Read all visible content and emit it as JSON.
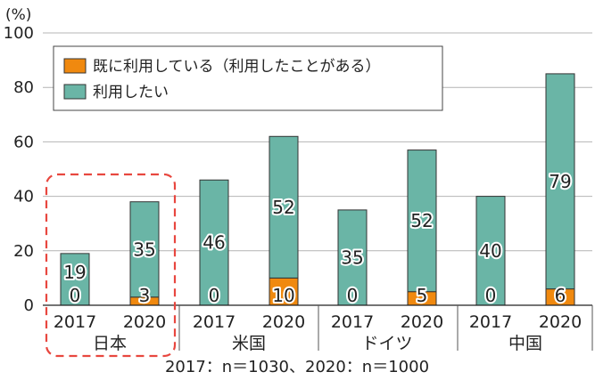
{
  "chart_data": {
    "type": "bar",
    "stacked": true,
    "unit_label": "(%)",
    "ylim": [
      0,
      100
    ],
    "yticks": [
      0,
      20,
      40,
      60,
      80,
      100
    ],
    "grid": true,
    "legend_position": "top-left",
    "groups": [
      "日本",
      "米国",
      "ドイツ",
      "中国"
    ],
    "years": [
      "2017",
      "2020"
    ],
    "categories": [
      "2017",
      "2020",
      "2017",
      "2020",
      "2017",
      "2020",
      "2017",
      "2020"
    ],
    "series": [
      {
        "name": "既に利用している（利用したことがある）",
        "color": "#f0890f",
        "values": [
          0,
          3,
          0,
          10,
          0,
          5,
          0,
          6
        ]
      },
      {
        "name": "利用したい",
        "color": "#6ab5a6",
        "values": [
          19,
          35,
          46,
          52,
          35,
          52,
          40,
          79
        ]
      }
    ],
    "highlight_group": "日本",
    "highlight_color": "#e8473f",
    "footnote": "2017：n＝1030、2020：n＝1000"
  }
}
